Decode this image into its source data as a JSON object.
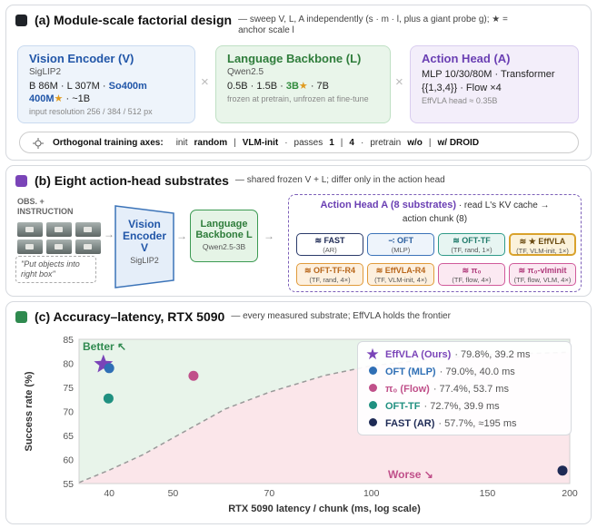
{
  "panel_a": {
    "title": "(a) Module-scale factorial design",
    "desc_line1": "— sweep V, L, A independently (s · m · l, plus a giant probe g); ★ =",
    "desc_line2": "anchor scale l",
    "vision": {
      "title": "Vision Encoder (V)",
      "model": "SigLIP2",
      "sizes_1": "B 86M · L 307M ·",
      "sizes_2": "So400m",
      "sizes_3": "400M",
      "sizes_4": "★",
      "sizes_5": "· ~1B",
      "note": "input resolution 256 / 384 / 512 px"
    },
    "language": {
      "title": "Language Backbone (L)",
      "model": "Qwen2.5",
      "sizes_1": "0.5B · 1.5B ·",
      "sizes_2": "3B",
      "sizes_3": "★",
      "sizes_4": "· 7B",
      "note": "frozen at pretrain, unfrozen at fine-tune"
    },
    "action": {
      "title": "Action Head (A)",
      "line1": "MLP 10/30/80M · Transformer",
      "line2": "{{1,3,4}} · Flow ×4",
      "note": "EffVLA head ≈ 0.35B"
    },
    "times_glyph": "×",
    "axes": {
      "label": "Orthogonal training axes:",
      "init_label": "init",
      "init_a": "random",
      "init_b": "VLM-init",
      "passes_label": "passes",
      "passes_a": "1",
      "passes_b": "4",
      "pretrain_label": "pretrain",
      "pretrain_a": "w/o",
      "pretrain_b": "w/ DROID",
      "sep": "|",
      "dot": "·"
    }
  },
  "panel_b": {
    "title": "(b) Eight action-head substrates",
    "desc": "— shared frozen V + L; differ only in the action head",
    "obs_label_1": "OBS. +",
    "obs_label_2": "INSTRUCTION",
    "instruction": "\"Put objects into right box\"",
    "vision_label_1": "Vision",
    "vision_label_2": "Encoder",
    "vision_label_3": "V",
    "vision_sub": "SigLIP2",
    "lang_label_1": "Language",
    "lang_label_2": "Backbone L",
    "lang_sub": "Qwen2.5-3B",
    "arrow": "→",
    "head_title": "Action Head A (8 substrates)",
    "head_desc": "· read L's KV cache →",
    "head_desc_2": "action chunk (8)",
    "substrates": [
      {
        "icon": "≋",
        "name": "FAST",
        "sub": "(AR)"
      },
      {
        "icon": "∹",
        "name": "OFT",
        "sub": "(MLP)"
      },
      {
        "icon": "≋",
        "name": "OFT-TF",
        "sub": "(TF, rand, 1×)"
      },
      {
        "icon": "≋ ★",
        "name": "EffVLA",
        "sub": "(TF, VLM-init, 1×)"
      },
      {
        "icon": "≋",
        "name": "OFT-TF-R4",
        "sub": "(TF, rand, 4×)"
      },
      {
        "icon": "≋",
        "name": "EffVLA-R4",
        "sub": "(TF, VLM-init, 4×)"
      },
      {
        "icon": "≋",
        "name": "π₀",
        "sub": "(TF, flow, 4×)"
      },
      {
        "icon": "≋",
        "name": "π₀-vlminit",
        "sub": "(TF, flow, VLM, 4×)"
      }
    ]
  },
  "panel_c": {
    "title": "(c) Accuracy–latency, RTX 5090",
    "desc": "— every measured substrate; EffVLA holds the frontier",
    "better_label": "Better ↖",
    "worse_label": "Worse ↘",
    "legend": [
      {
        "name": "EffVLA (Ours)",
        "value": "· 79.8%, 39.2 ms",
        "color": "#7a44b8"
      },
      {
        "name": "OFT (MLP)",
        "value": "· 79.0%, 40.0 ms",
        "color": "#2f6fb5"
      },
      {
        "name": "π₀ (Flow)",
        "value": "· 77.4%, 53.7 ms",
        "color": "#c0508a"
      },
      {
        "name": "OFT-TF",
        "value": "· 72.7%, 39.9 ms",
        "color": "#1f9080"
      },
      {
        "name": "FAST (AR)",
        "value": "· 57.7%, ≈195 ms",
        "color": "#1e2a55"
      }
    ],
    "star_glyph": "★"
  },
  "colors": {
    "panel_a_square": "#1f2328",
    "panel_b_square": "#7a44b8",
    "panel_c_square": "#2f8a4f",
    "better_region": "#e8f4ea",
    "worse_region": "#fbe6ea"
  },
  "chart_data": {
    "type": "scatter",
    "title": "",
    "xlabel": "RTX 5090 latency / chunk (ms, log scale)",
    "ylabel": "Success rate (%)",
    "x_scale": "log",
    "xlim": [
      36,
      200
    ],
    "ylim": [
      55,
      85
    ],
    "x_ticks": [
      40,
      50,
      70,
      100,
      150,
      200
    ],
    "y_ticks": [
      55,
      60,
      65,
      70,
      75,
      80,
      85
    ],
    "grid": false,
    "legend_position": "top-right",
    "series": [
      {
        "name": "EffVLA (Ours)",
        "marker": "star",
        "color": "#7a44b8",
        "points": [
          {
            "x": 39.2,
            "y": 79.8
          }
        ]
      },
      {
        "name": "OFT (MLP)",
        "marker": "circle",
        "color": "#2f6fb5",
        "points": [
          {
            "x": 40.0,
            "y": 79.0
          }
        ]
      },
      {
        "name": "π₀ (Flow)",
        "marker": "circle",
        "color": "#c0508a",
        "points": [
          {
            "x": 53.7,
            "y": 77.4
          }
        ]
      },
      {
        "name": "OFT-TF",
        "marker": "circle",
        "color": "#1f9080",
        "points": [
          {
            "x": 39.9,
            "y": 72.7
          }
        ]
      },
      {
        "name": "FAST (AR)",
        "marker": "circle",
        "color": "#1e2a55",
        "points": [
          {
            "x": 195,
            "y": 57.7
          }
        ]
      }
    ],
    "frontier": {
      "style": "dashed",
      "x": [
        36,
        40,
        45,
        50,
        60,
        70,
        85,
        100,
        125,
        150,
        200
      ],
      "y": [
        55.2,
        57.8,
        61.0,
        64.5,
        70.5,
        74.0,
        77.5,
        79.5,
        81.0,
        81.8,
        82.3
      ]
    }
  }
}
